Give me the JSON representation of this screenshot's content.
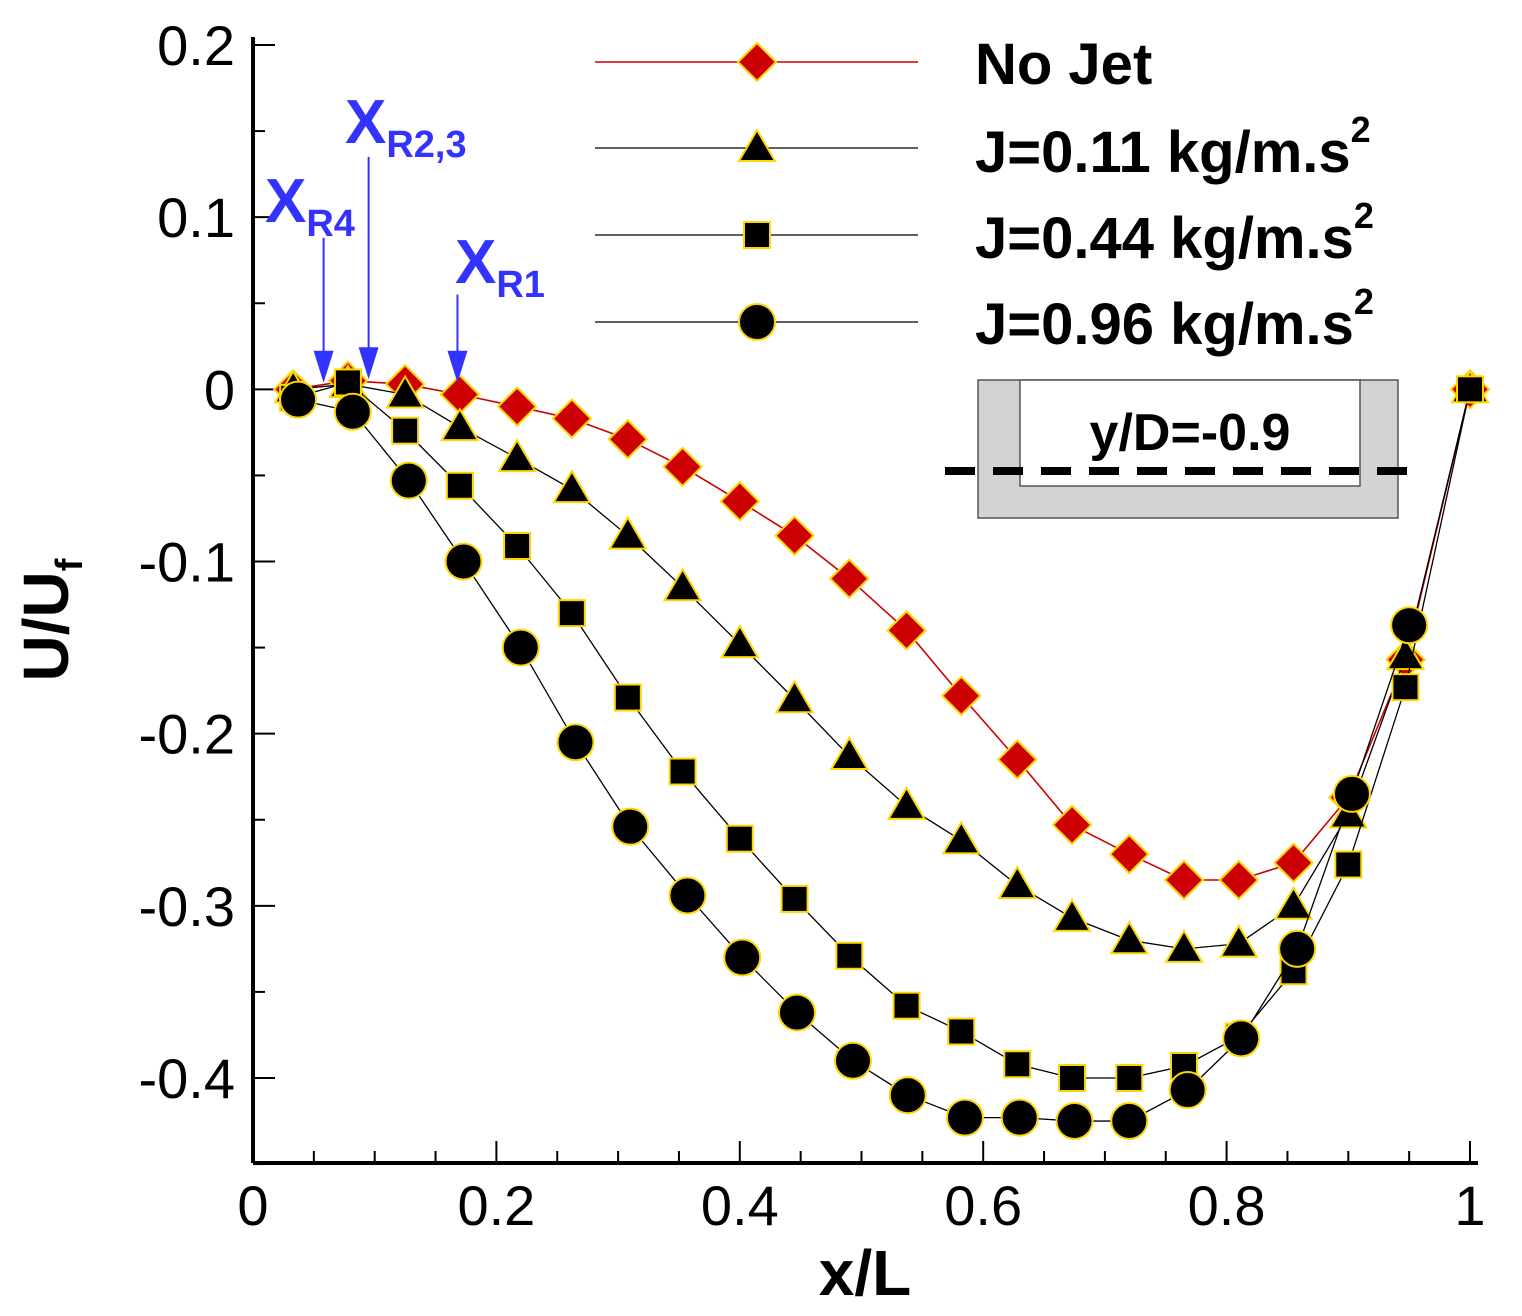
{
  "chart_data": {
    "type": "line",
    "title": "",
    "xlabel": "x/L",
    "ylabel": {
      "main": "U/U",
      "sub": "f"
    },
    "xlim": [
      0,
      1
    ],
    "ylim": [
      -0.45,
      0.2
    ],
    "x_ticks": [
      0,
      0.2,
      0.4,
      0.6,
      0.8,
      1
    ],
    "x_tick_labels": [
      "0",
      "0.2",
      "0.4",
      "0.6",
      "0.8",
      "1"
    ],
    "y_ticks": [
      0.2,
      0.1,
      0,
      -0.1,
      -0.2,
      -0.3,
      -0.4
    ],
    "y_tick_labels": [
      "0.2",
      "0.1",
      "0",
      "-0.1",
      "-0.2",
      "-0.3",
      "-0.4"
    ],
    "grid": false,
    "legend_position": "top-right",
    "series": [
      {
        "name": "No Jet",
        "label_main": "No Jet",
        "label_sup": "",
        "marker": "diamond",
        "color": "#cc0000",
        "line_color": "#cc0000",
        "x": [
          0.033,
          0.078,
          0.125,
          0.17,
          0.217,
          0.262,
          0.308,
          0.353,
          0.4,
          0.445,
          0.49,
          0.537,
          0.582,
          0.628,
          0.673,
          0.72,
          0.765,
          0.81,
          0.855,
          0.9,
          0.947,
          1.0
        ],
        "y": [
          0.0,
          0.005,
          0.003,
          -0.003,
          -0.01,
          -0.017,
          -0.029,
          -0.045,
          -0.065,
          -0.085,
          -0.11,
          -0.14,
          -0.178,
          -0.215,
          -0.253,
          -0.27,
          -0.285,
          -0.285,
          -0.275,
          -0.237,
          -0.157,
          0.0
        ]
      },
      {
        "name": "J=0.11 kg/m.s2",
        "label_main": "J=0.11 kg/m.s",
        "label_sup": "2",
        "marker": "triangle",
        "color": "#000000",
        "line_color": "#000000",
        "x": [
          0.033,
          0.078,
          0.125,
          0.17,
          0.217,
          0.262,
          0.308,
          0.353,
          0.4,
          0.445,
          0.49,
          0.537,
          0.582,
          0.628,
          0.673,
          0.72,
          0.765,
          0.81,
          0.855,
          0.9,
          0.947,
          1.0
        ],
        "y": [
          0.0,
          0.003,
          -0.003,
          -0.022,
          -0.04,
          -0.058,
          -0.085,
          -0.115,
          -0.148,
          -0.18,
          -0.213,
          -0.242,
          -0.262,
          -0.288,
          -0.307,
          -0.32,
          -0.325,
          -0.322,
          -0.3,
          -0.247,
          -0.155,
          0.0
        ]
      },
      {
        "name": "J=0.44 kg/m.s2",
        "label_main": "J=0.44 kg/m.s",
        "label_sup": "2",
        "marker": "square",
        "color": "#000000",
        "line_color": "#000000",
        "x": [
          0.033,
          0.078,
          0.125,
          0.17,
          0.217,
          0.262,
          0.308,
          0.353,
          0.4,
          0.445,
          0.49,
          0.537,
          0.582,
          0.628,
          0.673,
          0.72,
          0.765,
          0.81,
          0.855,
          0.9,
          0.947,
          1.0
        ],
        "y": [
          -0.005,
          0.004,
          -0.024,
          -0.056,
          -0.091,
          -0.13,
          -0.179,
          -0.222,
          -0.261,
          -0.296,
          -0.329,
          -0.358,
          -0.373,
          -0.392,
          -0.4,
          -0.4,
          -0.393,
          -0.376,
          -0.338,
          -0.276,
          -0.173,
          0.0
        ]
      },
      {
        "name": "J=0.96 kg/m.s2",
        "label_main": "J=0.96 kg/m.s",
        "label_sup": "2",
        "marker": "circle",
        "color": "#000000",
        "line_color": "#000000",
        "x": [
          0.037,
          0.082,
          0.128,
          0.173,
          0.22,
          0.265,
          0.31,
          0.357,
          0.402,
          0.447,
          0.493,
          0.538,
          0.585,
          0.63,
          0.675,
          0.72,
          0.768,
          0.812,
          0.858,
          0.903,
          0.95
        ],
        "y": [
          -0.006,
          -0.013,
          -0.053,
          -0.1,
          -0.15,
          -0.205,
          -0.254,
          -0.294,
          -0.33,
          -0.362,
          -0.39,
          -0.41,
          -0.423,
          -0.423,
          -0.425,
          -0.425,
          -0.407,
          -0.377,
          -0.325,
          -0.235,
          -0.137
        ]
      }
    ],
    "annotations": [
      {
        "id": "XR4",
        "main": "X",
        "sub": "R4",
        "x": 0.058,
        "y_arrow_start": 0.088,
        "y_arrow_end": 0.005
      },
      {
        "id": "XR23",
        "main": "X",
        "sub": "R2,3",
        "x": 0.095,
        "y_arrow_start": 0.135,
        "y_arrow_end": 0.007
      },
      {
        "id": "XR1",
        "main": "X",
        "sub": "R1",
        "x": 0.168,
        "y_arrow_start": 0.055,
        "y_arrow_end": 0.005
      }
    ],
    "inset": {
      "label": "y/D=-0.9"
    }
  },
  "colors": {
    "annotation": "#3333ff",
    "marker_edge": "#ffd700",
    "inset_fill": "#d3d3d3"
  }
}
